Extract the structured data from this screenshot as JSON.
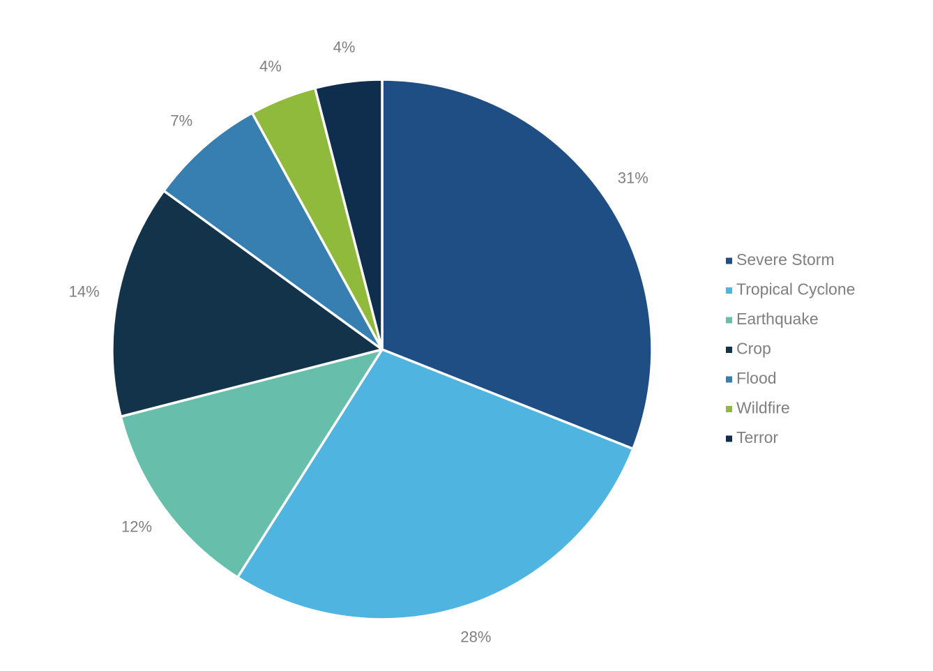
{
  "chart_data": {
    "type": "pie",
    "slices": [
      {
        "name": "Severe Storm",
        "value": 31,
        "label": "31%",
        "color": "#1f4e85"
      },
      {
        "name": "Tropical Cyclone",
        "value": 28,
        "label": "28%",
        "color": "#50b4e0"
      },
      {
        "name": "Earthquake",
        "value": 12,
        "label": "12%",
        "color": "#67bfab"
      },
      {
        "name": "Crop",
        "value": 14,
        "label": "14%",
        "color": "#123349"
      },
      {
        "name": "Flood",
        "value": 7,
        "label": "7%",
        "color": "#377fb1"
      },
      {
        "name": "Wildfire",
        "value": 4,
        "label": "4%",
        "color": "#8fba3c"
      },
      {
        "name": "Terror",
        "value": 4,
        "label": "4%",
        "color": "#0f2d4d"
      }
    ],
    "start_angle_deg": 0,
    "direction": "clockwise",
    "legend_position": "right",
    "label_color": "#7f7f7f",
    "slice_border_color": "#ffffff"
  }
}
